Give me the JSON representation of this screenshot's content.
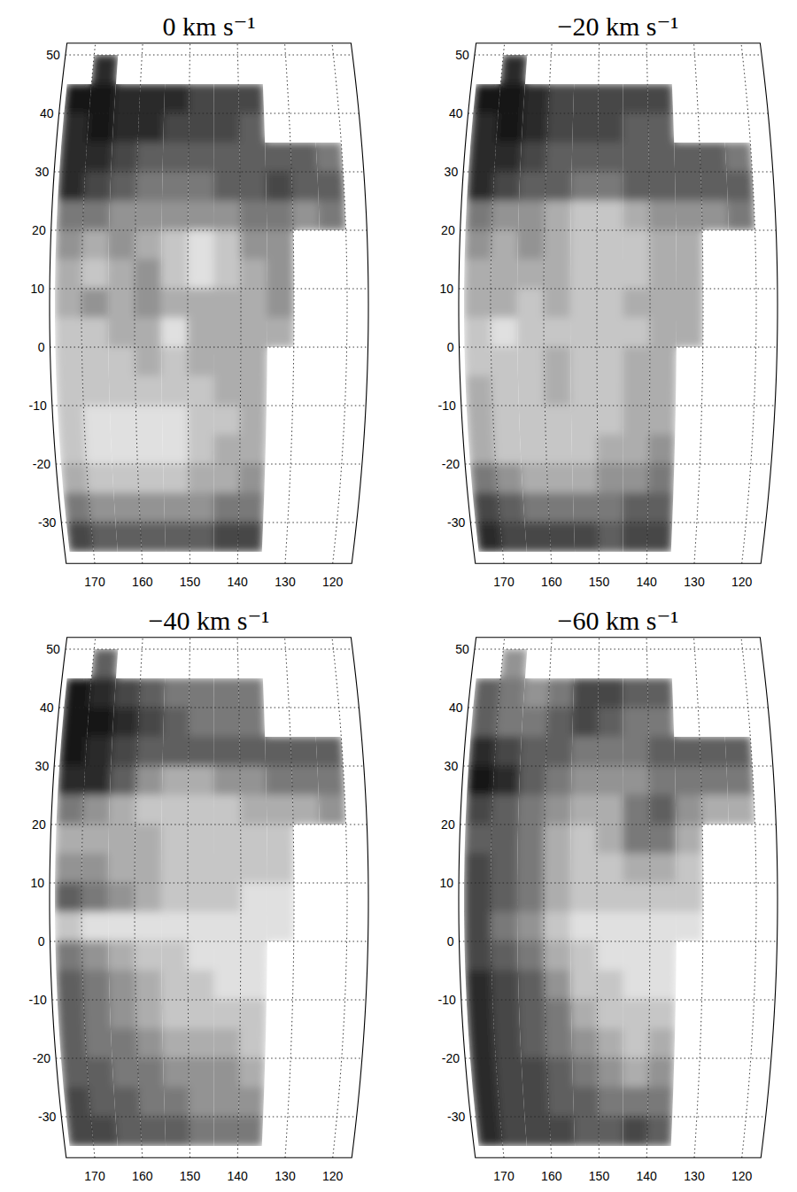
{
  "chart_data": [
    {
      "type": "heatmap",
      "title": "0 km s⁻¹",
      "grid": true,
      "xlim": [
        176,
        116
      ],
      "ylim": [
        -37,
        52
      ],
      "xticks": [
        170,
        160,
        150,
        140,
        130,
        120
      ],
      "yticks": [
        -30,
        -20,
        -10,
        0,
        10,
        20,
        30,
        40,
        50
      ],
      "x_edges": [
        175,
        170,
        165,
        160,
        155,
        150,
        145,
        140,
        135,
        130,
        125,
        120
      ],
      "y_edges": [
        50,
        45,
        40,
        35,
        30,
        25,
        20,
        15,
        10,
        5,
        0,
        -5,
        -10,
        -15,
        -20,
        -25,
        -30,
        -35
      ],
      "color_range": [
        0,
        9
      ],
      "cells": [
        [
          null,
          8,
          null,
          null,
          null,
          null,
          null,
          null,
          null,
          null,
          null
        ],
        [
          9,
          9,
          8,
          8,
          8,
          7,
          7,
          7,
          null,
          null,
          null
        ],
        [
          8,
          9,
          8,
          8,
          7,
          7,
          7,
          6,
          null,
          null,
          null
        ],
        [
          8,
          8,
          7,
          6,
          6,
          6,
          6,
          6,
          6,
          6,
          5
        ],
        [
          8,
          7,
          6,
          5,
          5,
          5,
          6,
          6,
          7,
          6,
          6
        ],
        [
          5,
          5,
          4,
          4,
          4,
          4,
          4,
          5,
          5,
          4,
          5
        ],
        [
          4,
          3,
          4,
          3,
          2,
          1,
          2,
          4,
          4,
          null,
          null
        ],
        [
          3,
          2,
          3,
          4,
          2,
          1,
          2,
          3,
          4,
          null,
          null
        ],
        [
          3,
          4,
          3,
          4,
          3,
          3,
          3,
          3,
          4,
          null,
          null
        ],
        [
          2,
          2,
          3,
          3,
          1,
          3,
          3,
          3,
          3,
          null,
          null
        ],
        [
          2,
          2,
          2,
          3,
          2,
          3,
          3,
          3,
          null,
          null,
          null
        ],
        [
          2,
          2,
          2,
          2,
          2,
          2,
          3,
          3,
          null,
          null,
          null
        ],
        [
          2,
          1,
          1,
          1,
          1,
          2,
          2,
          3,
          null,
          null,
          null
        ],
        [
          2,
          1,
          1,
          1,
          1,
          2,
          3,
          3,
          null,
          null,
          null
        ],
        [
          3,
          2,
          2,
          2,
          2,
          3,
          3,
          4,
          null,
          null,
          null
        ],
        [
          5,
          4,
          4,
          4,
          4,
          4,
          5,
          5,
          null,
          null,
          null
        ],
        [
          7,
          6,
          6,
          6,
          6,
          6,
          7,
          7,
          null,
          null,
          null
        ]
      ]
    },
    {
      "type": "heatmap",
      "title": "−20 km s⁻¹",
      "grid": true,
      "xlim": [
        176,
        116
      ],
      "ylim": [
        -37,
        52
      ],
      "xticks": [
        170,
        160,
        150,
        140,
        130,
        120
      ],
      "yticks": [
        -30,
        -20,
        -10,
        0,
        10,
        20,
        30,
        40,
        50
      ],
      "x_edges": [
        175,
        170,
        165,
        160,
        155,
        150,
        145,
        140,
        135,
        130,
        125,
        120
      ],
      "y_edges": [
        50,
        45,
        40,
        35,
        30,
        25,
        20,
        15,
        10,
        5,
        0,
        -5,
        -10,
        -15,
        -20,
        -25,
        -30,
        -35
      ],
      "color_range": [
        0,
        9
      ],
      "cells": [
        [
          null,
          8,
          null,
          null,
          null,
          null,
          null,
          null,
          null,
          null,
          null
        ],
        [
          9,
          9,
          8,
          7,
          7,
          7,
          7,
          7,
          null,
          null,
          null
        ],
        [
          8,
          9,
          8,
          7,
          7,
          7,
          6,
          6,
          null,
          null,
          null
        ],
        [
          8,
          8,
          7,
          6,
          6,
          6,
          6,
          6,
          6,
          6,
          5
        ],
        [
          8,
          7,
          6,
          6,
          5,
          5,
          6,
          6,
          6,
          6,
          6
        ],
        [
          5,
          4,
          4,
          3,
          2,
          2,
          3,
          4,
          4,
          4,
          5
        ],
        [
          4,
          3,
          4,
          3,
          2,
          2,
          2,
          3,
          3,
          null,
          null
        ],
        [
          3,
          3,
          3,
          3,
          2,
          2,
          2,
          3,
          3,
          null,
          null
        ],
        [
          3,
          3,
          2,
          3,
          2,
          2,
          3,
          3,
          3,
          null,
          null
        ],
        [
          2,
          1,
          2,
          2,
          2,
          2,
          2,
          3,
          3,
          null,
          null
        ],
        [
          2,
          2,
          2,
          3,
          2,
          2,
          3,
          3,
          null,
          null,
          null
        ],
        [
          3,
          2,
          2,
          3,
          2,
          2,
          3,
          3,
          null,
          null,
          null
        ],
        [
          3,
          2,
          2,
          2,
          2,
          2,
          3,
          3,
          null,
          null,
          null
        ],
        [
          3,
          2,
          2,
          2,
          2,
          3,
          3,
          4,
          null,
          null,
          null
        ],
        [
          5,
          4,
          3,
          3,
          3,
          4,
          4,
          5,
          null,
          null,
          null
        ],
        [
          7,
          6,
          5,
          5,
          5,
          5,
          6,
          6,
          null,
          null,
          null
        ],
        [
          8,
          7,
          7,
          7,
          7,
          6,
          7,
          7,
          null,
          null,
          null
        ]
      ]
    },
    {
      "type": "heatmap",
      "title": "−40 km s⁻¹",
      "grid": true,
      "xlim": [
        176,
        116
      ],
      "ylim": [
        -37,
        52
      ],
      "xticks": [
        170,
        160,
        150,
        140,
        130,
        120
      ],
      "yticks": [
        -30,
        -20,
        -10,
        0,
        10,
        20,
        30,
        40,
        50
      ],
      "x_edges": [
        175,
        170,
        165,
        160,
        155,
        150,
        145,
        140,
        135,
        130,
        125,
        120
      ],
      "y_edges": [
        50,
        45,
        40,
        35,
        30,
        25,
        20,
        15,
        10,
        5,
        0,
        -5,
        -10,
        -15,
        -20,
        -25,
        -30,
        -35
      ],
      "color_range": [
        0,
        9
      ],
      "cells": [
        [
          null,
          6,
          null,
          null,
          null,
          null,
          null,
          null,
          null,
          null,
          null
        ],
        [
          9,
          8,
          7,
          6,
          5,
          5,
          5,
          5,
          null,
          null,
          null
        ],
        [
          9,
          9,
          8,
          7,
          6,
          5,
          5,
          5,
          null,
          null,
          null
        ],
        [
          9,
          8,
          7,
          6,
          6,
          6,
          6,
          6,
          6,
          6,
          6
        ],
        [
          8,
          8,
          6,
          4,
          3,
          3,
          4,
          4,
          5,
          5,
          5
        ],
        [
          5,
          4,
          3,
          2,
          2,
          2,
          2,
          3,
          3,
          3,
          4
        ],
        [
          3,
          3,
          3,
          3,
          2,
          2,
          2,
          2,
          2,
          null,
          null
        ],
        [
          4,
          4,
          3,
          3,
          2,
          2,
          2,
          2,
          2,
          null,
          null
        ],
        [
          6,
          5,
          4,
          3,
          2,
          2,
          2,
          1,
          1,
          null,
          null
        ],
        [
          2,
          1,
          1,
          1,
          1,
          1,
          1,
          1,
          1,
          null,
          null
        ],
        [
          5,
          4,
          3,
          2,
          2,
          1,
          1,
          1,
          null,
          null,
          null
        ],
        [
          6,
          5,
          4,
          3,
          2,
          2,
          1,
          1,
          null,
          null,
          null
        ],
        [
          6,
          5,
          4,
          3,
          2,
          2,
          2,
          2,
          null,
          null,
          null
        ],
        [
          6,
          5,
          5,
          4,
          3,
          3,
          3,
          2,
          null,
          null,
          null
        ],
        [
          6,
          6,
          5,
          5,
          4,
          4,
          4,
          3,
          null,
          null,
          null
        ],
        [
          7,
          6,
          6,
          5,
          5,
          4,
          4,
          4,
          null,
          null,
          null
        ],
        [
          7,
          7,
          6,
          6,
          6,
          5,
          5,
          5,
          null,
          null,
          null
        ]
      ]
    },
    {
      "type": "heatmap",
      "title": "−60 km s⁻¹",
      "grid": true,
      "xlim": [
        176,
        116
      ],
      "ylim": [
        -37,
        52
      ],
      "xticks": [
        170,
        160,
        150,
        140,
        130,
        120
      ],
      "yticks": [
        -30,
        -20,
        -10,
        0,
        10,
        20,
        30,
        40,
        50
      ],
      "x_edges": [
        175,
        170,
        165,
        160,
        155,
        150,
        145,
        140,
        135,
        130,
        125,
        120
      ],
      "y_edges": [
        50,
        45,
        40,
        35,
        30,
        25,
        20,
        15,
        10,
        5,
        0,
        -5,
        -10,
        -15,
        -20,
        -25,
        -30,
        -35
      ],
      "color_range": [
        0,
        9
      ],
      "cells": [
        [
          null,
          4,
          null,
          null,
          null,
          null,
          null,
          null,
          null,
          null,
          null
        ],
        [
          6,
          5,
          4,
          5,
          7,
          7,
          6,
          6,
          null,
          null,
          null
        ],
        [
          6,
          5,
          5,
          6,
          7,
          6,
          5,
          5,
          null,
          null,
          null
        ],
        [
          8,
          7,
          6,
          6,
          5,
          5,
          5,
          6,
          6,
          6,
          6
        ],
        [
          9,
          8,
          6,
          5,
          4,
          4,
          4,
          5,
          5,
          5,
          5
        ],
        [
          7,
          6,
          5,
          4,
          3,
          3,
          5,
          6,
          4,
          3,
          3
        ],
        [
          6,
          6,
          5,
          3,
          2,
          3,
          5,
          5,
          3,
          null,
          null
        ],
        [
          7,
          6,
          5,
          3,
          2,
          2,
          3,
          3,
          2,
          null,
          null
        ],
        [
          7,
          6,
          5,
          3,
          2,
          2,
          2,
          2,
          2,
          null,
          null
        ],
        [
          7,
          5,
          4,
          2,
          1,
          1,
          1,
          1,
          1,
          null,
          null
        ],
        [
          7,
          6,
          5,
          3,
          2,
          1,
          1,
          1,
          null,
          null,
          null
        ],
        [
          8,
          7,
          6,
          4,
          2,
          2,
          1,
          1,
          null,
          null,
          null
        ],
        [
          8,
          7,
          6,
          5,
          3,
          2,
          2,
          2,
          null,
          null,
          null
        ],
        [
          8,
          7,
          6,
          5,
          4,
          3,
          2,
          3,
          null,
          null,
          null
        ],
        [
          8,
          7,
          7,
          6,
          5,
          4,
          3,
          4,
          null,
          null,
          null
        ],
        [
          8,
          7,
          7,
          6,
          6,
          5,
          5,
          5,
          null,
          null,
          null
        ],
        [
          8,
          7,
          7,
          7,
          6,
          6,
          7,
          6,
          null,
          null,
          null
        ]
      ]
    }
  ]
}
